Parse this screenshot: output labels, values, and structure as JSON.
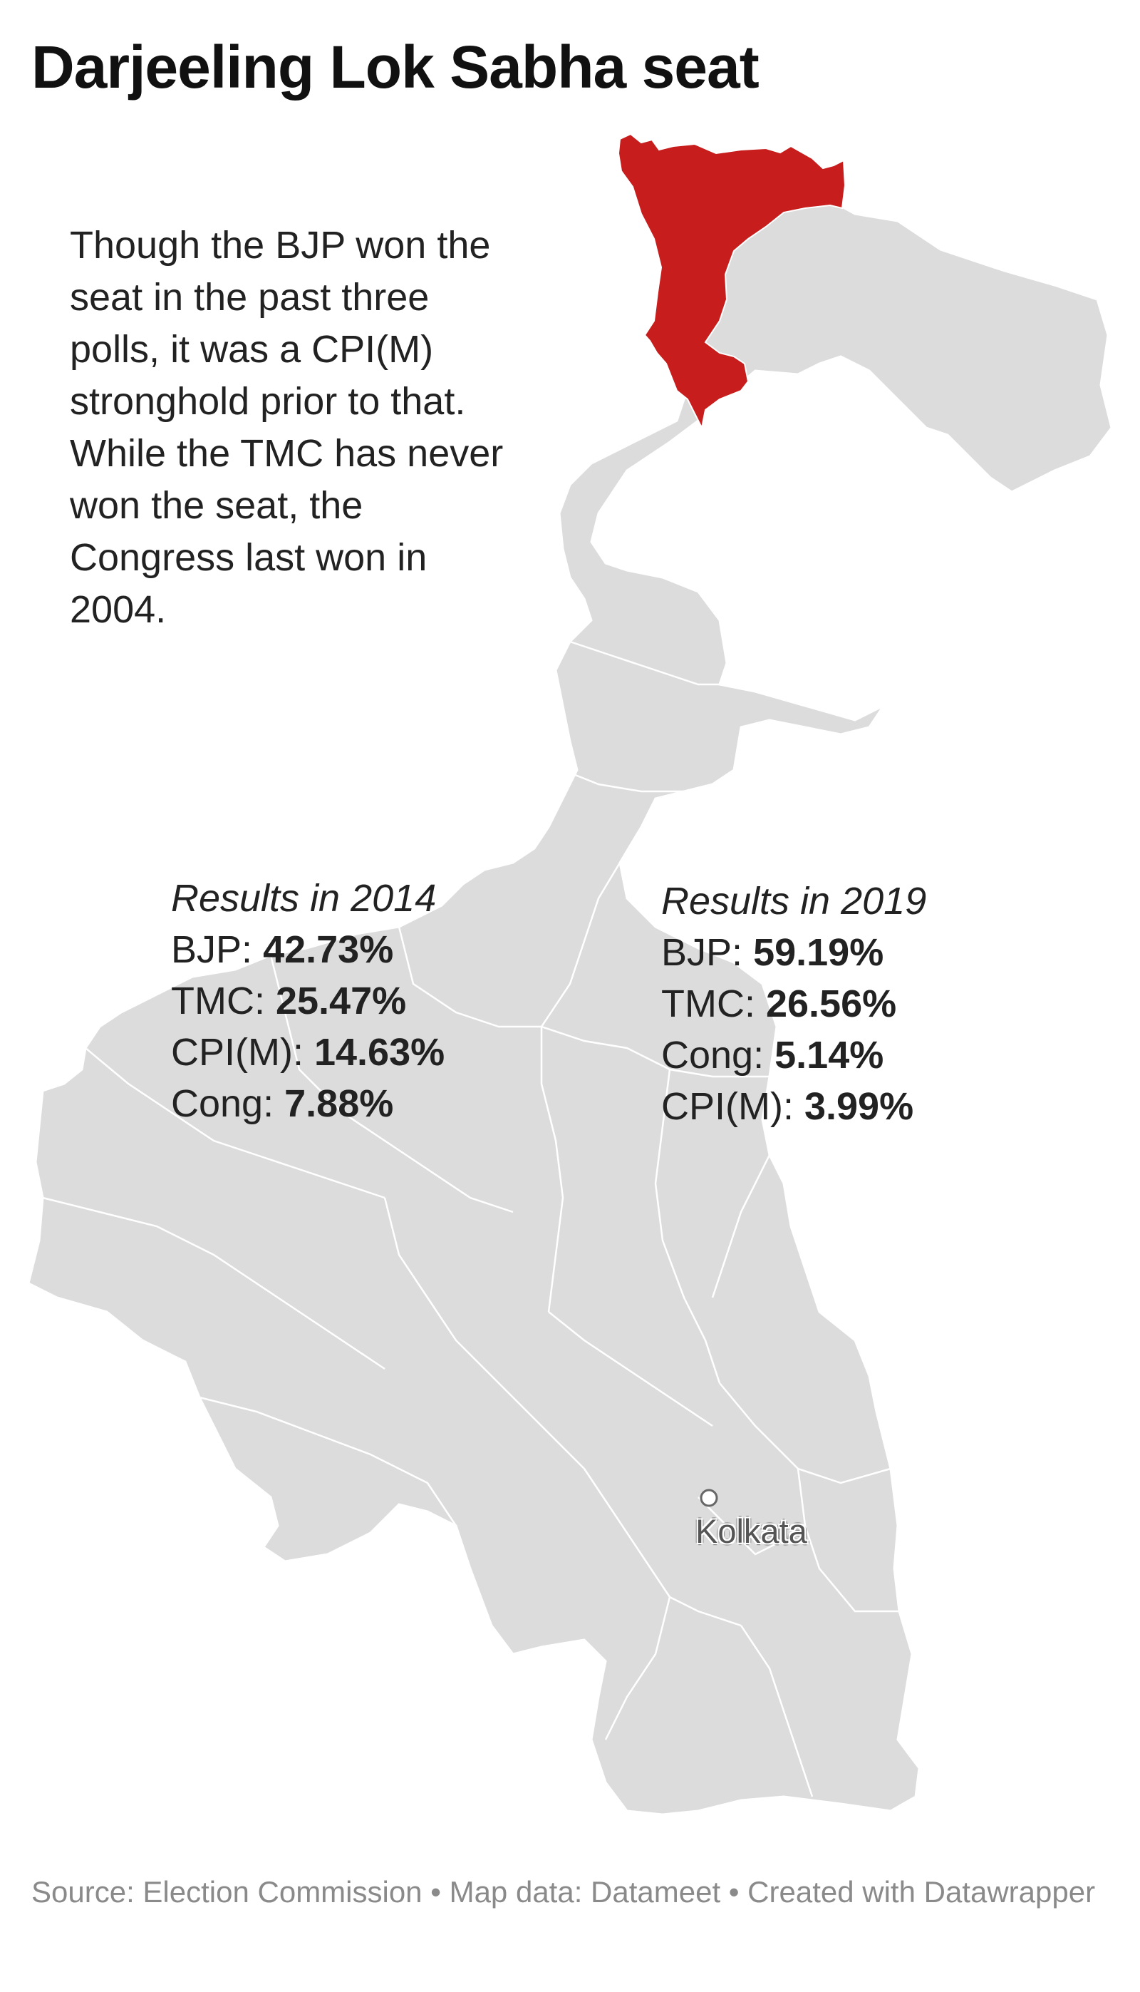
{
  "title": "Darjeeling Lok Sabha seat",
  "annotation": "Though the BJP won the seat in the past three polls, it was a CPI(M) stronghold prior to that. While the TMC has never won the seat, the Congress last won in 2004.",
  "results_2014": {
    "heading": "Results in 2014",
    "rows": [
      {
        "party": "BJP:",
        "value": "42.73%"
      },
      {
        "party": "TMC:",
        "value": "25.47%"
      },
      {
        "party": "CPI(M):",
        "value": "14.63%"
      },
      {
        "party": "Cong:",
        "value": "7.88%"
      }
    ]
  },
  "results_2019": {
    "heading": "Results in 2019",
    "rows": [
      {
        "party": "BJP:",
        "value": "59.19%"
      },
      {
        "party": "TMC:",
        "value": "26.56%"
      },
      {
        "party": "Cong:",
        "value": "5.14%"
      },
      {
        "party": "CPI(M):",
        "value": "3.99%"
      }
    ]
  },
  "map": {
    "highlight_region": "Darjeeling",
    "highlight_color": "#c71e1d",
    "base_color": "#dcdcdc",
    "border_color": "#ffffff",
    "city": {
      "name": "Kolkata"
    }
  },
  "footer": {
    "source_text": "Source: Election Commission • Map data: Datameet • Created with Datawrapper"
  }
}
